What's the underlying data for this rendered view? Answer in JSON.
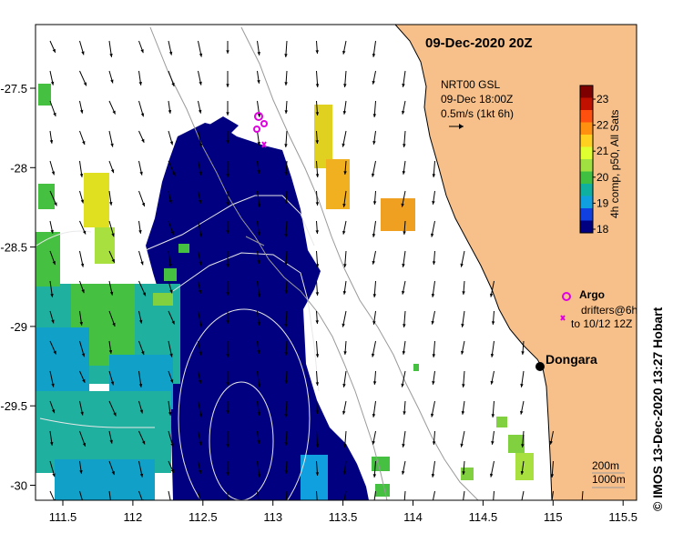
{
  "header": {
    "date": "09-Dec-2020 20Z"
  },
  "current_legend": {
    "source": "NRT00 GSL",
    "time": "09-Dec 18:00Z",
    "scale": "0.5m/s (1kt 6h)"
  },
  "colorbar": {
    "label": "4h comp, p50, All Sats",
    "ticks": [
      "23",
      "22",
      "21",
      "20",
      "19",
      "18"
    ],
    "colors": [
      "#7f0000",
      "#c01000",
      "#ff5010",
      "#ff9010",
      "#ffd020",
      "#e0ff30",
      "#a0e040",
      "#40c040",
      "#10b0a0",
      "#10a0e0",
      "#1040e0",
      "#000080"
    ]
  },
  "legend": {
    "argo_label": "Argo",
    "drifters_line1": "drifters@6h",
    "drifters_line2": "to 10/12 12Z"
  },
  "places": {
    "dongara": "Dongara"
  },
  "depth_legend": {
    "line1": "200m",
    "line2": "1000m"
  },
  "axes": {
    "x_ticks": [
      "111.5",
      "112",
      "112.5",
      "113",
      "113.5",
      "114",
      "114.5",
      "115",
      "115.5"
    ],
    "y_ticks": [
      "-27.5",
      "-28",
      "-28.5",
      "-29",
      "-29.5",
      "-30"
    ]
  },
  "credit": "©  IMOS 13-Dec-2020 13:27 Hobart",
  "colors": {
    "land": "#f7c08a",
    "cold": "#000080",
    "coastline": "#000000"
  }
}
